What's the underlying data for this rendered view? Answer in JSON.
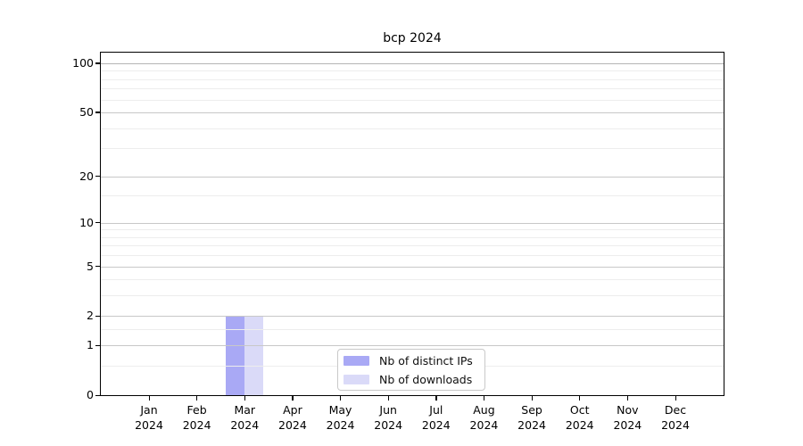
{
  "chart_data": {
    "type": "bar",
    "title": "bcp 2024",
    "categories": [
      "Jan",
      "Feb",
      "Mar",
      "Apr",
      "May",
      "Jun",
      "Jul",
      "Aug",
      "Sep",
      "Oct",
      "Nov",
      "Dec"
    ],
    "xtick_year": "2024",
    "series": [
      {
        "name": "Nb of distinct IPs",
        "color": "#a9a9f5",
        "values": [
          0,
          0,
          2,
          0,
          0,
          0,
          0,
          0,
          0,
          0,
          0,
          0
        ]
      },
      {
        "name": "Nb of downloads",
        "color": "#dadaf8",
        "values": [
          0,
          0,
          2,
          0,
          0,
          0,
          0,
          0,
          0,
          0,
          0,
          0
        ]
      }
    ],
    "yscale": "log1p",
    "ylim": [
      0,
      116
    ],
    "yticks": [
      0,
      1,
      2,
      5,
      10,
      20,
      50,
      100
    ],
    "yticks_minor": [
      0.5,
      1.5,
      3,
      4,
      6,
      7,
      8,
      9,
      15,
      30,
      40,
      60,
      70,
      80,
      90
    ],
    "grid": "horizontal",
    "legend_position": "inside-bottom-center",
    "colors": {
      "axis": "#000000",
      "grid_major": "#c8c8c8",
      "grid_emphasis": "#b4b4b4",
      "grid_minor": "#ededed",
      "background": "#ffffff"
    }
  }
}
